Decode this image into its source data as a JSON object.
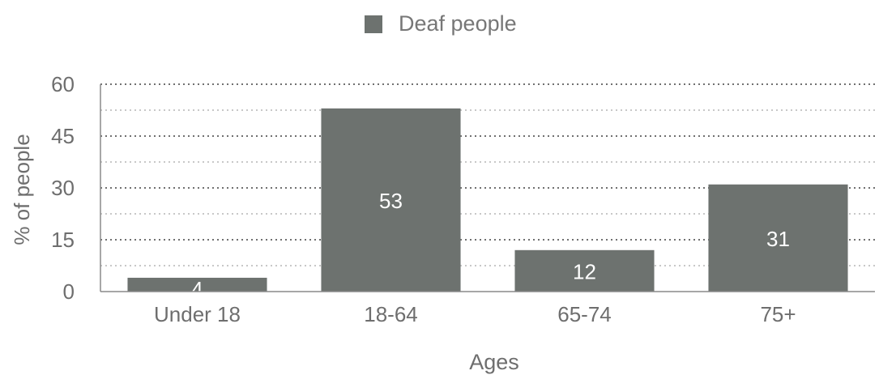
{
  "colors": {
    "bar": "#6d726f",
    "grid": "#707070",
    "axis_text": "#6e6e6e",
    "bar_label": "#ffffff"
  },
  "legend": {
    "label": "Deaf people"
  },
  "chart_data": {
    "type": "bar",
    "categories": [
      "Under 18",
      "18-64",
      "65-74",
      "75+"
    ],
    "series": [
      {
        "name": "Deaf people",
        "values": [
          4,
          53,
          12,
          31
        ]
      }
    ],
    "data_labels": [
      "4",
      "53",
      "12",
      "31"
    ],
    "xlabel": "Ages",
    "ylabel": "% of people",
    "ylim": [
      0,
      60
    ],
    "yticks": [
      0,
      15,
      30,
      45,
      60
    ],
    "grid": true,
    "legend_position": "top-center"
  }
}
